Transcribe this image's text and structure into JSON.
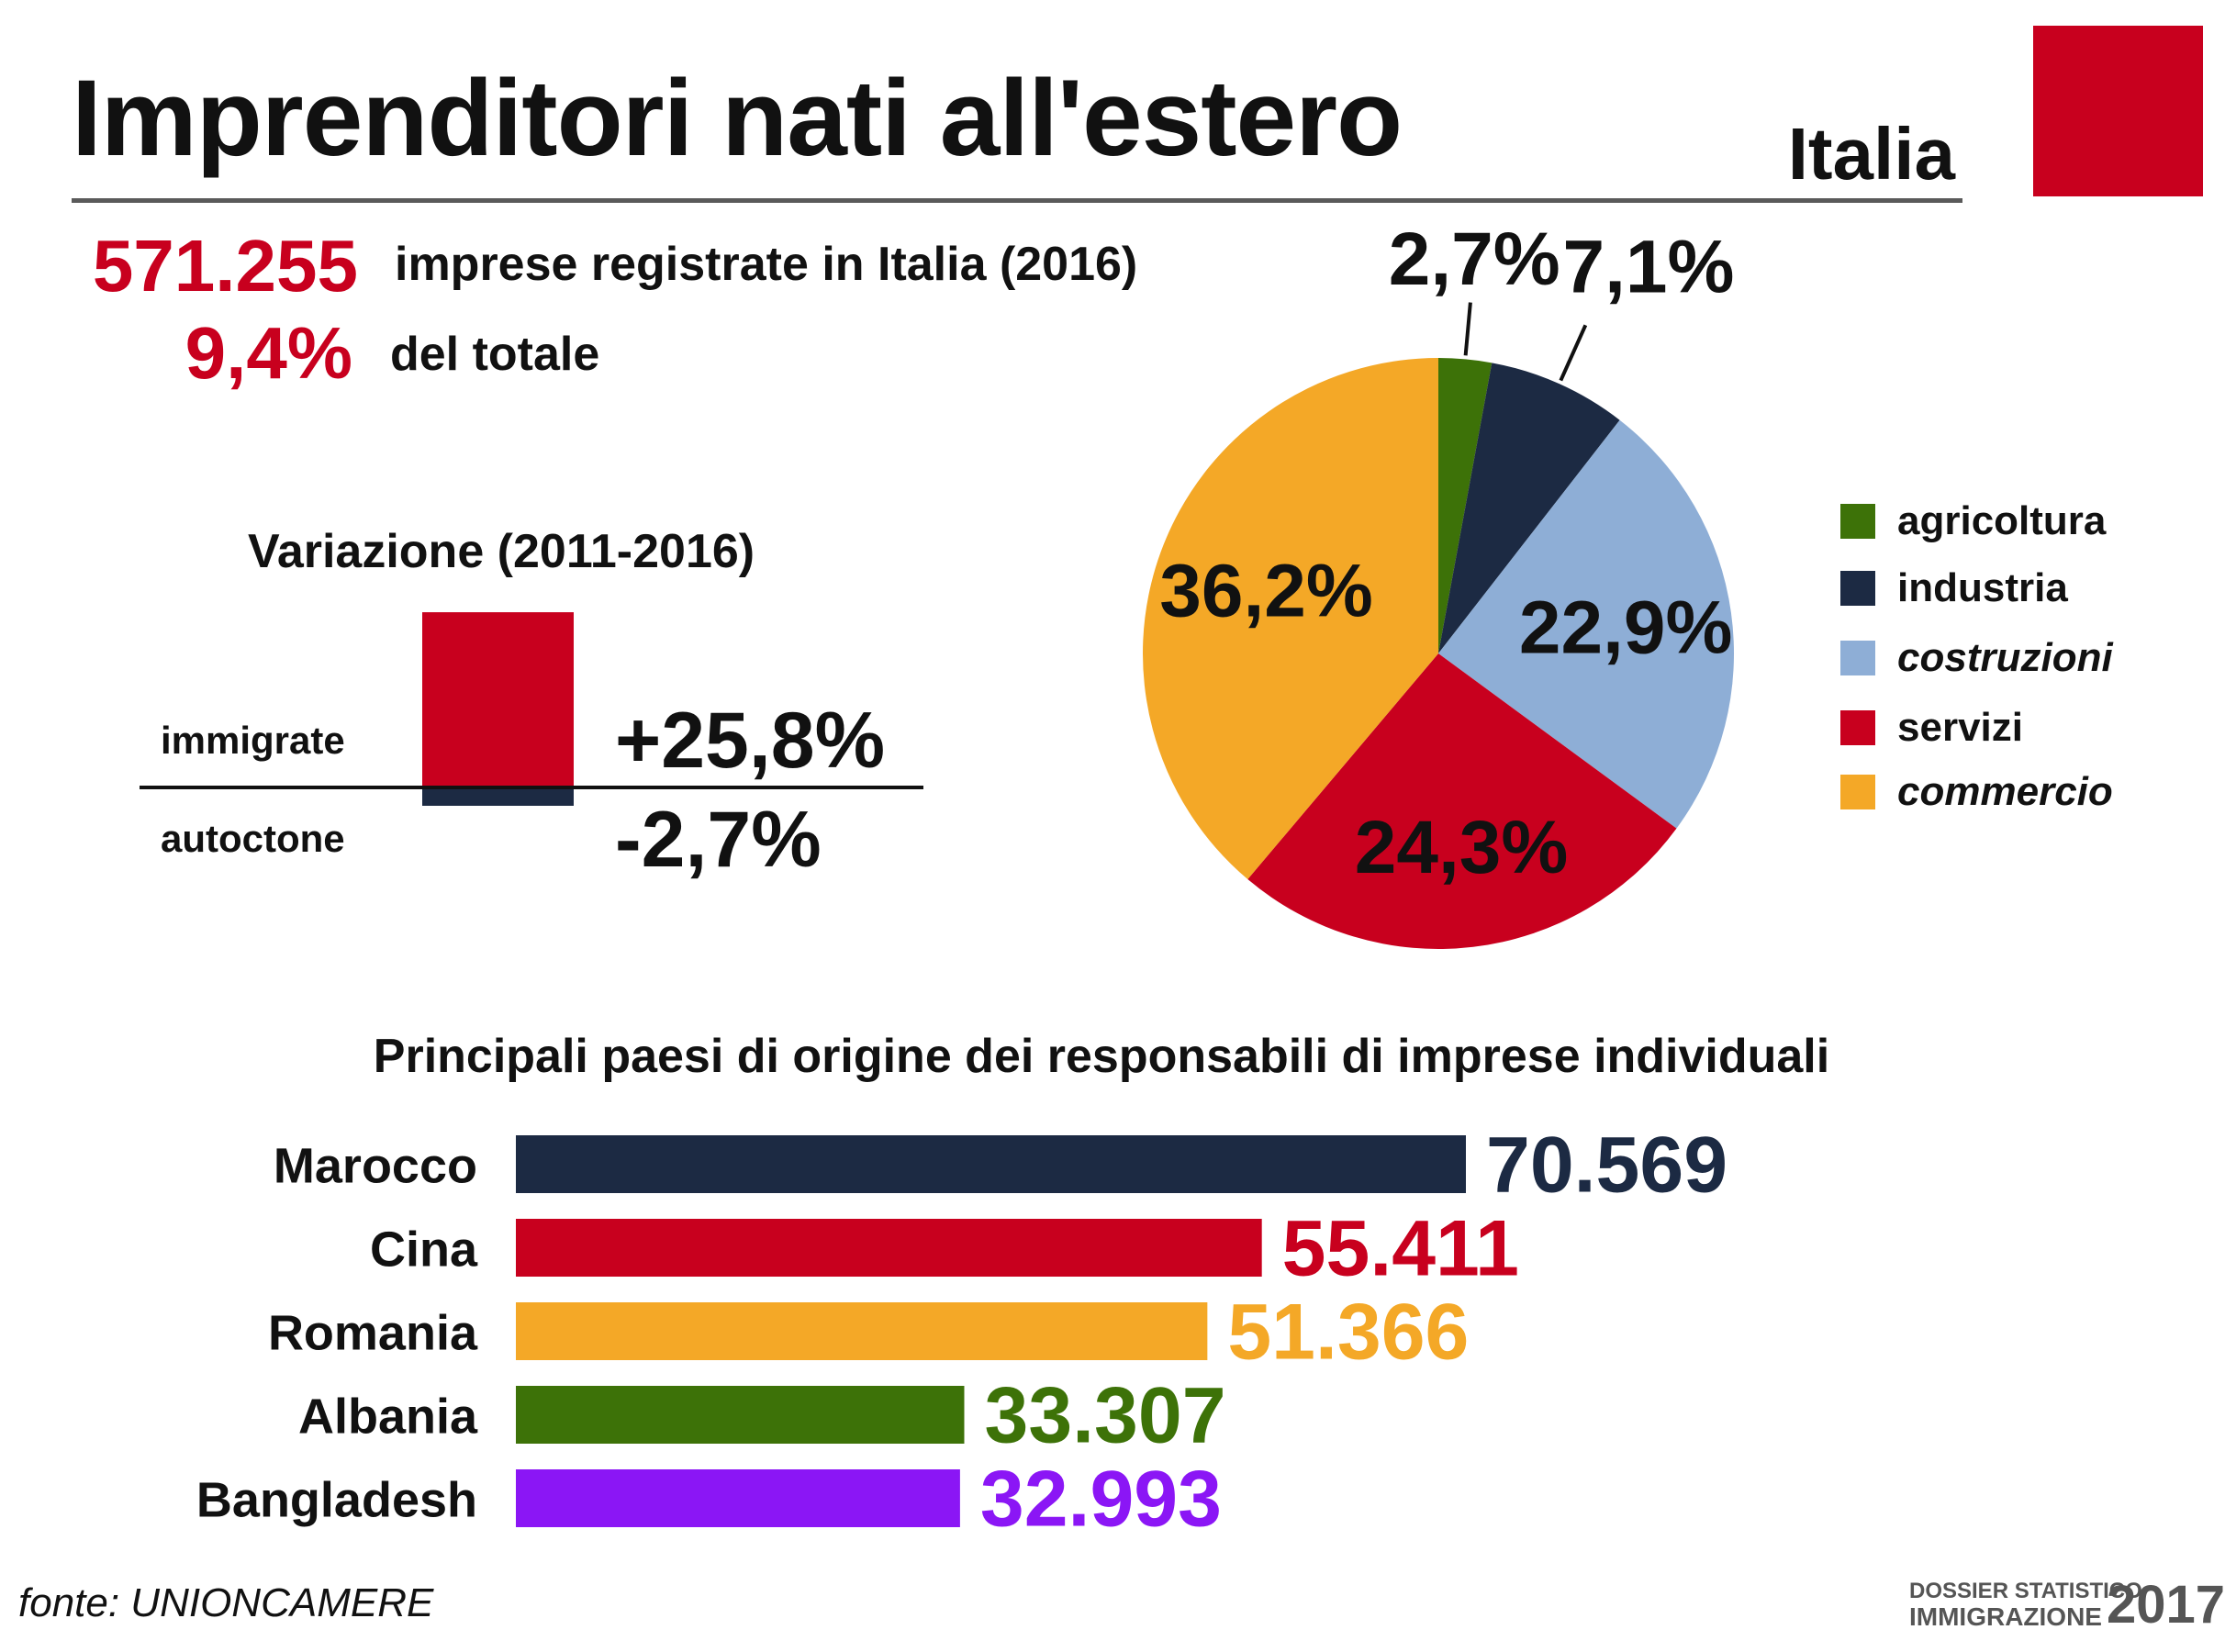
{
  "header": {
    "title": "Imprenditori nati all'estero",
    "region": "Italia"
  },
  "stats": {
    "total_value": "571.255",
    "total_label": "imprese registrate in Italia (2016)",
    "share_value": "9,4%",
    "share_label": "del totale"
  },
  "variation": {
    "title": "Variazione (2011-2016)",
    "immigrate_label": "immigrate",
    "autoctone_label": "autoctone",
    "immigrate_value": "+25,8%",
    "autoctone_value": "-2,7%"
  },
  "bars_title": "Principali paesi di origine dei responsabili di imprese individuali",
  "source": "fonte: UNIONCAMERE",
  "brand": {
    "line1": "DOSSIER STATISTICO",
    "line2": "IMMIGRAZIONE",
    "year": "2017"
  },
  "colors": {
    "red": "#c8001e",
    "navy": "#1c2a43",
    "light_blue": "#8eaed6",
    "orange": "#f4a827",
    "green": "#3d7208",
    "purple": "#8b16f5"
  },
  "chart_data": [
    {
      "type": "bar",
      "orientation": "vertical",
      "title": "Variazione (2011-2016)",
      "categories": [
        "immigrate",
        "autoctone"
      ],
      "values": [
        25.8,
        -2.7
      ],
      "labels": [
        "+25,8%",
        "-2,7%"
      ],
      "colors": [
        "#c8001e",
        "#1c2a43"
      ]
    },
    {
      "type": "pie",
      "slices": [
        {
          "name": "agricoltura",
          "value": 2.7,
          "label": "2,7%",
          "color": "#3d7208",
          "italic": false
        },
        {
          "name": "industria",
          "value": 7.1,
          "label": "7,1%",
          "color": "#1c2a43",
          "italic": false
        },
        {
          "name": "costruzioni",
          "value": 22.9,
          "label": "22,9%",
          "color": "#8eaed6",
          "italic": true
        },
        {
          "name": "servizi",
          "value": 24.3,
          "label": "24,3%",
          "color": "#c8001e",
          "italic": false
        },
        {
          "name": "commercio",
          "value": 36.2,
          "label": "36,2%",
          "color": "#f4a827",
          "italic": true
        }
      ],
      "legend_position": "right"
    },
    {
      "type": "bar",
      "orientation": "horizontal",
      "title": "Principali paesi di origine dei responsabili di imprese individuali",
      "categories": [
        "Marocco",
        "Cina",
        "Romania",
        "Albania",
        "Bangladesh"
      ],
      "values": [
        70569,
        55411,
        51366,
        33307,
        32993
      ],
      "labels": [
        "70.569",
        "55.411",
        "51.366",
        "33.307",
        "32.993"
      ],
      "colors": [
        "#1c2a43",
        "#c8001e",
        "#f4a827",
        "#3d7208",
        "#8b16f5"
      ]
    }
  ]
}
